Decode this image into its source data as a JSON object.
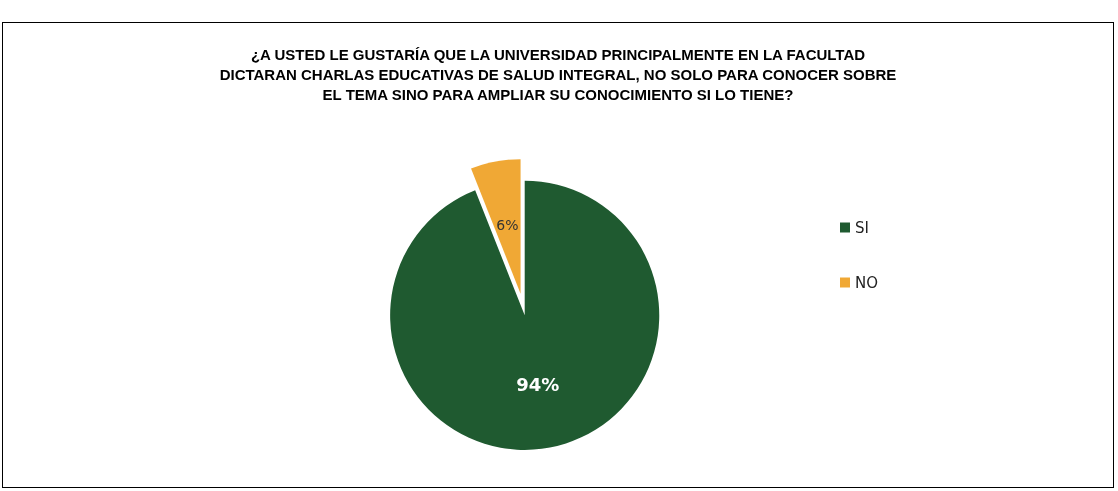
{
  "chart_data": {
    "type": "pie",
    "title": "¿A USTED LE GUSTARÍA QUE LA UNIVERSIDAD PRINCIPALMENTE EN LA FACULTAD\nDICTARAN CHARLAS EDUCATIVAS DE SALUD INTEGRAL, NO SOLO PARA CONOCER SOBRE\nEL TEMA SINO PARA AMPLIAR SU CONOCIMIENTO SI LO TIENE?",
    "categories": [
      "SI",
      "NO"
    ],
    "values": [
      94,
      6
    ],
    "colors": [
      "#1f5a30",
      "#f0a835"
    ],
    "value_labels": [
      "94%",
      "6%"
    ],
    "legend": "right"
  }
}
